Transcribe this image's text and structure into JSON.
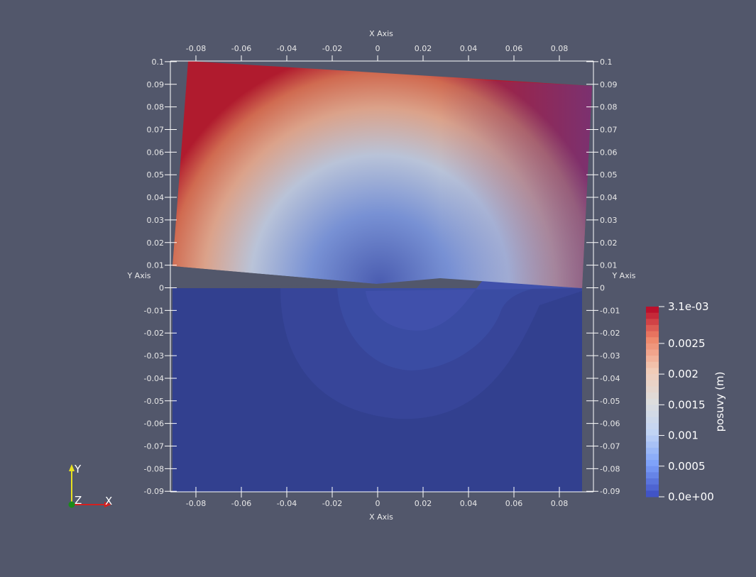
{
  "axes": {
    "x_title": "X Axis",
    "y_title": "Y Axis",
    "x_ticks": [
      "-0.08",
      "-0.06",
      "-0.04",
      "-0.02",
      "0",
      "0.02",
      "0.04",
      "0.06",
      "0.08"
    ],
    "x_tick_values": [
      -0.08,
      -0.06,
      -0.04,
      -0.02,
      0,
      0.02,
      0.04,
      0.06,
      0.08
    ],
    "y_ticks": [
      "0.1",
      "0.09",
      "0.08",
      "0.07",
      "0.06",
      "0.05",
      "0.04",
      "0.03",
      "0.02",
      "0.01",
      "0",
      "-0.01",
      "-0.02",
      "-0.03",
      "-0.04",
      "-0.05",
      "-0.06",
      "-0.07",
      "-0.08",
      "-0.09"
    ],
    "y_tick_values": [
      0.1,
      0.09,
      0.08,
      0.07,
      0.06,
      0.05,
      0.04,
      0.03,
      0.02,
      0.01,
      0,
      -0.01,
      -0.02,
      -0.03,
      -0.04,
      -0.05,
      -0.06,
      -0.07,
      -0.08,
      -0.09
    ],
    "axis_color": "#ffffff"
  },
  "colorbar": {
    "title": "posuvy (m)",
    "labels": [
      "3.1e-03",
      "0.0025",
      "0.002",
      "0.0015",
      "0.001",
      "0.0005",
      "0.0e+00"
    ],
    "label_values": [
      0.0031,
      0.0025,
      0.002,
      0.0015,
      0.001,
      0.0005,
      0.0
    ],
    "range": [
      0.0,
      0.0031
    ],
    "colormap": "cool-to-warm",
    "colors": [
      "#3b4cc0",
      "#7b9ff9",
      "#c0d4f5",
      "#dddddd",
      "#f2cbb7",
      "#ee8468",
      "#b40426"
    ]
  },
  "orientation": {
    "y_label": "Y",
    "z_label": "Z",
    "x_label": "X",
    "x_color": "#d42020",
    "y_color": "#e8e020",
    "z_color": "#1a8a1a"
  },
  "colors": {
    "background": "#52576b",
    "lower_region": "#32408f"
  }
}
